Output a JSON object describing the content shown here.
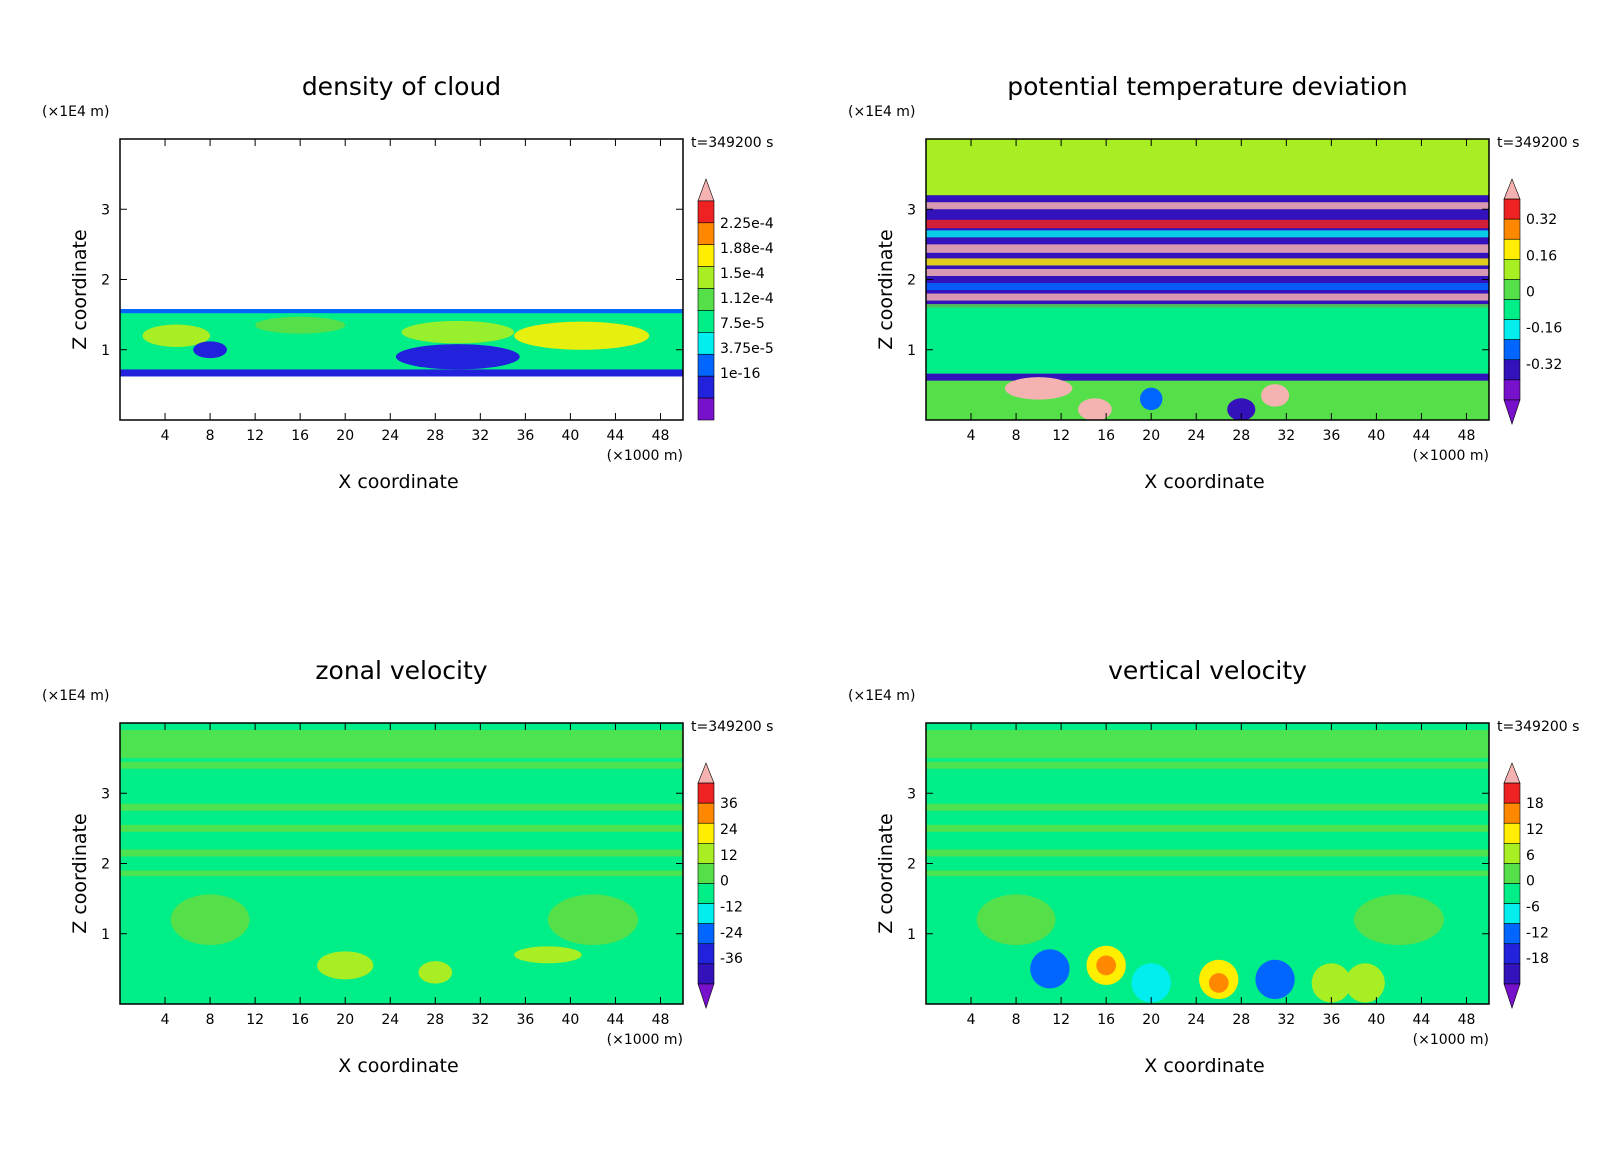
{
  "x_axis": {
    "label": "X coordinate",
    "unit": "(×1000 m)",
    "range": [
      0,
      50
    ],
    "ticks": [
      "4",
      "8",
      "12",
      "16",
      "20",
      "24",
      "28",
      "32",
      "36",
      "40",
      "44",
      "48"
    ]
  },
  "z_axis": {
    "label": "Z coordinate",
    "unit": "(×1E4 m)",
    "range": [
      0,
      4
    ],
    "ticks": [
      "1",
      "2",
      "3"
    ]
  },
  "chart_data": [
    {
      "type": "heatmap",
      "title": "density of cloud",
      "time_label": "t=349200 s",
      "xlabel": "X coordinate",
      "ylabel": "Z coordinate",
      "xlim": [
        0,
        50
      ],
      "ylim": [
        0,
        4
      ],
      "colorbar": {
        "labels": [
          "2.25e-4",
          "1.88e-4",
          "1.5e-4",
          "1.12e-4",
          "7.5e-5",
          "3.75e-5",
          "1e-16"
        ],
        "levels": [
          0.000225,
          0.000188,
          0.00015,
          0.000112,
          7.5e-05,
          3.75e-05,
          1e-16
        ],
        "extend": "max"
      },
      "cloud_layer_z": [
        0.6,
        1.6
      ]
    },
    {
      "type": "heatmap",
      "title": "potential temperature deviation",
      "time_label": "t=349200 s",
      "xlabel": "X coordinate",
      "ylabel": "Z coordinate",
      "xlim": [
        0,
        50
      ],
      "ylim": [
        0,
        4
      ],
      "colorbar": {
        "labels": [
          "0.32",
          "0.16",
          "0",
          "-0.16",
          "-0.32"
        ],
        "levels": [
          0.32,
          0.16,
          0,
          -0.16,
          -0.32
        ],
        "extend": "both"
      }
    },
    {
      "type": "heatmap",
      "title": "zonal velocity",
      "time_label": "t=349200 s",
      "xlabel": "X coordinate",
      "ylabel": "Z coordinate",
      "xlim": [
        0,
        50
      ],
      "ylim": [
        0,
        4
      ],
      "colorbar": {
        "labels": [
          "36",
          "24",
          "12",
          "0",
          "-12",
          "-24",
          "-36"
        ],
        "levels": [
          36,
          24,
          12,
          0,
          -12,
          -24,
          -36
        ],
        "extend": "both"
      }
    },
    {
      "type": "heatmap",
      "title": "vertical velocity",
      "time_label": "t=349200 s",
      "xlabel": "X coordinate",
      "ylabel": "Z coordinate",
      "xlim": [
        0,
        50
      ],
      "ylim": [
        0,
        4
      ],
      "colorbar": {
        "labels": [
          "18",
          "12",
          "6",
          "0",
          "-6",
          "-12",
          "-18"
        ],
        "levels": [
          18,
          12,
          6,
          0,
          -6,
          -12,
          -18
        ],
        "extend": "both"
      }
    }
  ],
  "colors": {
    "pink": "#f4b3b0",
    "red": "#ee2222",
    "orange": "#ff8800",
    "yellow": "#ffee00",
    "yellowgreen": "#a8ee22",
    "green": "#55e04a",
    "sea": "#00ee88",
    "cyan": "#00eeee",
    "blue": "#0066ff",
    "navy": "#2222dd",
    "indigo": "#3311bb",
    "purple": "#7711cc"
  }
}
